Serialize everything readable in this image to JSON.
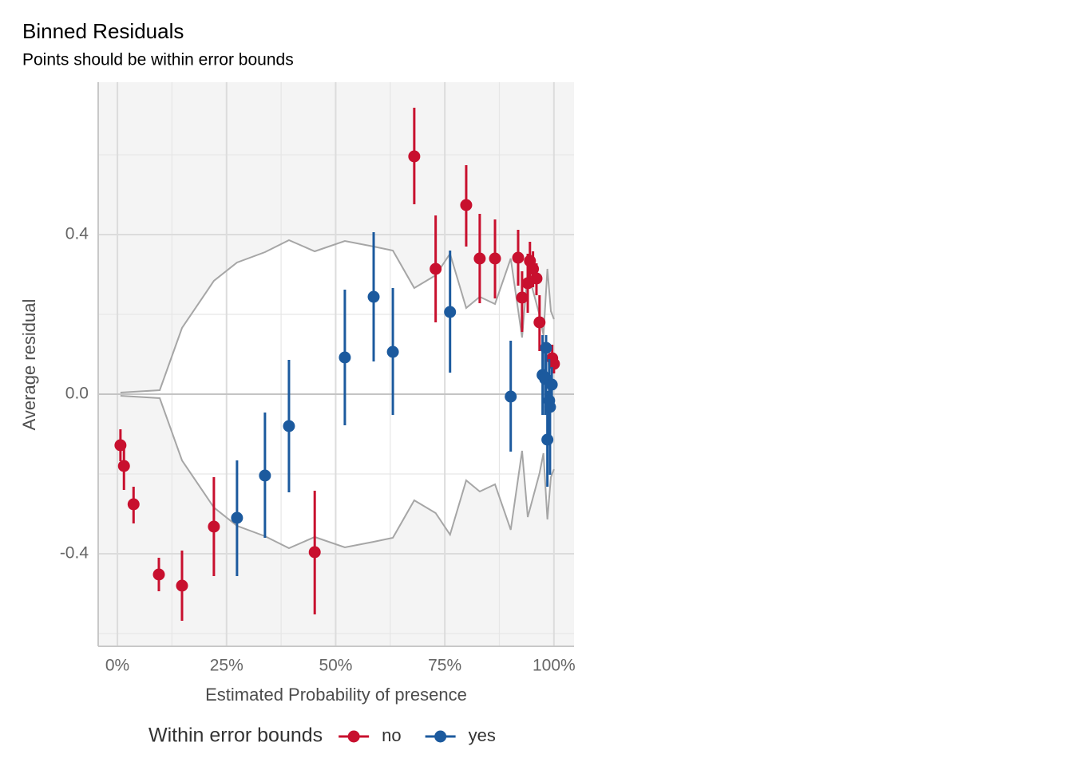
{
  "chart_data": {
    "type": "errorbar",
    "title": "Binned Residuals",
    "subtitle": "Points should be within error bounds",
    "x_label": "Estimated Probability of presence",
    "y_label": "Average residual",
    "legend_title": "Within error bounds",
    "legend_position": "bottom",
    "xlim": [
      -0.044,
      1.046
    ],
    "ylim": [
      -0.632,
      0.782
    ],
    "xticks": [
      {
        "value": 0,
        "label": "0%"
      },
      {
        "value": 0.25,
        "label": "25%"
      },
      {
        "value": 0.5,
        "label": "50%"
      },
      {
        "value": 0.75,
        "label": "75%"
      },
      {
        "value": 1,
        "label": "100%"
      }
    ],
    "yticks": [
      -0.4,
      {
        "value": 0,
        "label": "0.0"
      },
      0.4
    ],
    "grid": true,
    "minor_grid": true,
    "bounds": {
      "color": "#a6a6a6",
      "x": [
        0.007,
        0.097,
        0.148,
        0.221,
        0.274,
        0.338,
        0.393,
        0.452,
        0.521,
        0.587,
        0.631,
        0.68,
        0.729,
        0.762,
        0.799,
        0.83,
        0.865,
        0.901,
        0.927,
        0.94,
        0.967,
        0.976,
        0.985,
        0.993,
        1.0
      ],
      "upper": [
        0.004,
        0.01,
        0.166,
        0.284,
        0.33,
        0.356,
        0.386,
        0.358,
        0.384,
        0.37,
        0.36,
        0.266,
        0.298,
        0.352,
        0.216,
        0.244,
        0.226,
        0.34,
        0.142,
        0.308,
        0.198,
        0.148,
        0.314,
        0.208,
        0.188
      ],
      "lower": [
        -0.004,
        -0.01,
        -0.166,
        -0.284,
        -0.33,
        -0.356,
        -0.386,
        -0.358,
        -0.384,
        -0.37,
        -0.36,
        -0.266,
        -0.298,
        -0.352,
        -0.216,
        -0.244,
        -0.226,
        -0.34,
        -0.142,
        -0.308,
        -0.198,
        -0.148,
        -0.314,
        -0.208,
        -0.188
      ]
    },
    "series": [
      {
        "name": "no",
        "color": "#c8102e",
        "x": [
          0.007,
          0.015,
          0.037,
          0.095,
          0.148,
          0.221,
          0.452,
          0.68,
          0.729,
          0.799,
          0.83,
          0.865,
          0.918,
          0.927,
          0.94,
          0.945,
          0.952,
          0.96,
          0.967,
          0.996,
          1.0
        ],
        "values": [
          -0.128,
          -0.18,
          -0.276,
          -0.452,
          -0.48,
          -0.332,
          -0.396,
          0.596,
          0.314,
          0.474,
          0.34,
          0.34,
          0.342,
          0.242,
          0.278,
          0.334,
          0.314,
          0.29,
          0.18,
          0.09,
          0.076
        ],
        "upper": [
          -0.088,
          -0.132,
          -0.232,
          -0.41,
          -0.392,
          -0.208,
          -0.242,
          0.718,
          0.448,
          0.574,
          0.452,
          0.438,
          0.412,
          0.308,
          0.352,
          0.382,
          0.358,
          0.328,
          0.248,
          0.124,
          0.098
        ],
        "lower": [
          -0.168,
          -0.24,
          -0.324,
          -0.494,
          -0.568,
          -0.456,
          -0.552,
          0.476,
          0.18,
          0.37,
          0.228,
          0.24,
          0.272,
          0.156,
          0.204,
          0.284,
          0.268,
          0.248,
          0.108,
          0.056,
          0.052
        ]
      },
      {
        "name": "yes",
        "color": "#1c5a9e",
        "x": [
          0.274,
          0.338,
          0.393,
          0.521,
          0.587,
          0.631,
          0.762,
          0.901,
          0.974,
          0.98,
          0.982,
          0.985,
          0.989,
          0.991,
          0.995
        ],
        "values": [
          -0.31,
          -0.204,
          -0.08,
          0.092,
          0.244,
          0.106,
          0.206,
          -0.006,
          0.048,
          0.038,
          0.116,
          -0.114,
          -0.016,
          -0.032,
          0.024
        ],
        "upper": [
          -0.166,
          -0.046,
          0.086,
          0.262,
          0.406,
          0.266,
          0.36,
          0.134,
          0.148,
          0.128,
          0.148,
          0.008,
          0.088,
          0.048,
          0.068
        ],
        "lower": [
          -0.456,
          -0.36,
          -0.246,
          -0.078,
          0.082,
          -0.052,
          0.054,
          -0.144,
          -0.052,
          -0.052,
          -0.012,
          -0.232,
          -0.112,
          -0.202,
          -0.022
        ]
      }
    ]
  }
}
